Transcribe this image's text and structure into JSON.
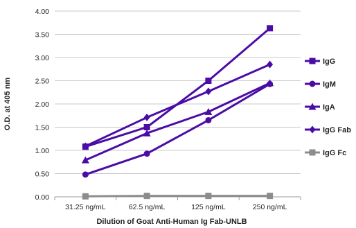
{
  "chart_data": {
    "type": "line",
    "title": "",
    "xlabel": "Dilution of Goat Anti-Human Ig Fab-UNLB",
    "ylabel": "O.D. at 405 nm",
    "categories": [
      "31.25 ng/mL",
      "62.5 ng/mL",
      "125 ng/mL",
      "250 ng/mL"
    ],
    "ylim": [
      0,
      4.0
    ],
    "yticks": [
      "0.00",
      "0.50",
      "1.00",
      "1.50",
      "2.00",
      "2.50",
      "3.00",
      "3.50",
      "4.00"
    ],
    "grid": "horizontal",
    "legend_position": "right",
    "series": [
      {
        "name": "IgG",
        "values": [
          1.08,
          1.5,
          2.5,
          3.63
        ],
        "color": "#4B0CA6",
        "marker": "square"
      },
      {
        "name": "IgM",
        "values": [
          0.48,
          0.93,
          1.65,
          2.43
        ],
        "color": "#4B0CA6",
        "marker": "circle"
      },
      {
        "name": "IgA",
        "values": [
          0.79,
          1.37,
          1.83,
          2.45
        ],
        "color": "#4B0CA6",
        "marker": "triangle"
      },
      {
        "name": "IgG Fab",
        "values": [
          1.09,
          1.71,
          2.27,
          2.85
        ],
        "color": "#4B0CA6",
        "marker": "diamond"
      },
      {
        "name": "IgG Fc",
        "values": [
          0.01,
          0.02,
          0.02,
          0.02
        ],
        "color": "#8C8C8C",
        "marker": "square"
      }
    ]
  }
}
